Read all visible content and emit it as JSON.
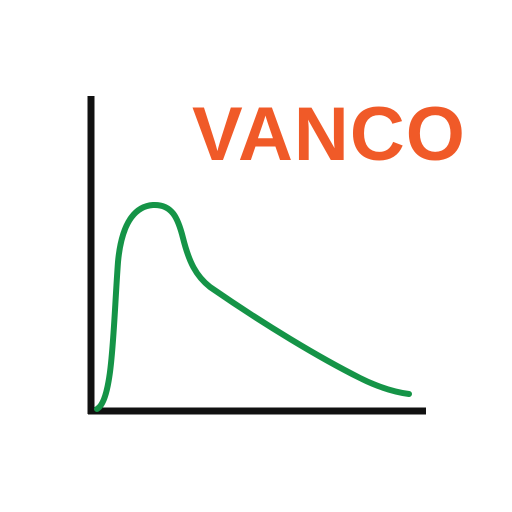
{
  "app_icon": {
    "wordmark": "VANCO",
    "colors": {
      "wordmark": "#f05a28",
      "curve": "#159447",
      "axes": "#111111",
      "background": "#ffffff"
    },
    "icon_names": [
      "concentration-curve-icon"
    ]
  }
}
